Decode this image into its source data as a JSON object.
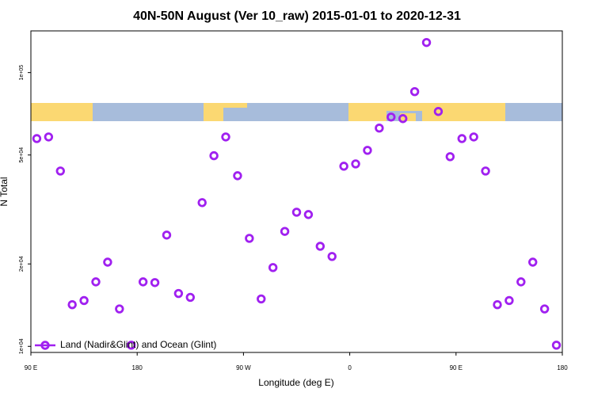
{
  "chart_data": {
    "type": "scatter",
    "title": "40N-50N August (Ver 10_raw)   2015-01-01 to 2020-12-31",
    "x_label": "Longitude (deg E)",
    "y_label": "N Total",
    "log_y": true,
    "legend_position": "bottom-left",
    "x": [
      -265,
      -255,
      -245,
      -235,
      -225,
      -215,
      -205,
      -195,
      -185,
      -175,
      -165,
      -155,
      -145,
      -135,
      -125,
      -115,
      -105,
      -95,
      -85,
      -75,
      -65,
      -55,
      -45,
      -35,
      -25,
      -15,
      -5,
      5,
      15,
      25,
      35,
      45,
      55,
      65,
      75,
      85,
      95,
      105,
      115,
      125,
      135,
      145,
      155,
      165,
      175
    ],
    "series": [
      {
        "name": "Land (Nadir&Glint) and Ocean (Glint)",
        "color": "#a020f0",
        "values": [
          57400,
          58200,
          43700,
          14200,
          14700,
          17200,
          20300,
          13700,
          10100,
          17200,
          17100,
          25500,
          15600,
          15100,
          33500,
          49700,
          58200,
          42000,
          24800,
          14900,
          19400,
          26300,
          30900,
          30300,
          23200,
          21300,
          45500,
          46400,
          52000,
          62700,
          68800,
          67900,
          85200,
          128800,
          72100,
          49300,
          57400,
          58200,
          43700,
          14200,
          14700,
          17200,
          20300,
          13700,
          10100
        ]
      }
    ],
    "xlim": [
      -270,
      180
    ],
    "xticks": [
      {
        "value": -270,
        "label": "90 E"
      },
      {
        "value": -180,
        "label": "180"
      },
      {
        "value": -90,
        "label": "90 W"
      },
      0,
      {
        "value": 90,
        "label": "90 E"
      },
      {
        "value": 180,
        "label": "180"
      }
    ],
    "ylim": [
      9500,
      142000
    ],
    "yticks": [
      {
        "value": 10000,
        "label": "1e+04"
      },
      {
        "value": 20000,
        "label": "2e+04"
      },
      {
        "value": 50000,
        "label": "5e+04"
      },
      {
        "value": 100000,
        "label": "1e+05"
      }
    ]
  }
}
